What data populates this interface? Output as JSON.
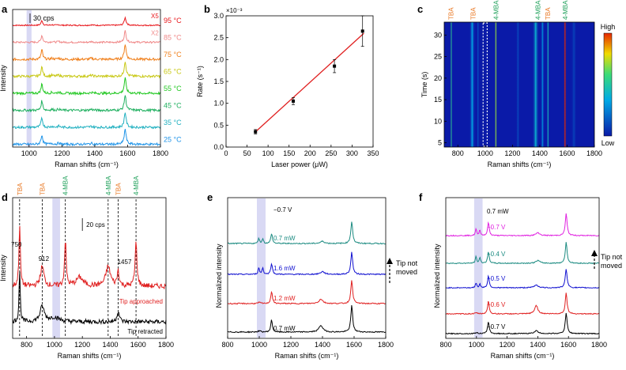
{
  "colors": {
    "black": "#000000",
    "red": "#e02020",
    "blue": "#1010d0",
    "teal": "#1a8a80",
    "magenta": "#e020e0",
    "orange": "#e87722",
    "green": "#1fa05a",
    "band": "#c9c9f0",
    "a_series": [
      "#e8161b",
      "#f08a8a",
      "#f07f1a",
      "#c8c815",
      "#22c822",
      "#20b060",
      "#20b0c0",
      "#2094e8"
    ],
    "heat_bg": "#0a1aa8"
  },
  "chart_data": [
    {
      "panel": "a",
      "type": "line",
      "xlabel": "Raman shifts (cm⁻¹)",
      "ylabel": "Intensity",
      "xlim": [
        900,
        1800
      ],
      "xticks": [
        "1000",
        "1200",
        "1400",
        "1600",
        "1800"
      ],
      "scalebar": "30 cps",
      "series": [
        {
          "name": "95 °C",
          "note": "X5"
        },
        {
          "name": "85 °C",
          "note": "X2"
        },
        {
          "name": "75 °C",
          "note": ""
        },
        {
          "name": "65 °C",
          "note": ""
        },
        {
          "name": "55 °C",
          "note": ""
        },
        {
          "name": "45 °C",
          "note": ""
        },
        {
          "name": "35 °C",
          "note": ""
        },
        {
          "name": "25 °C",
          "note": ""
        }
      ],
      "peaks": [
        1078,
        1585
      ]
    },
    {
      "panel": "b",
      "type": "scatter",
      "xlabel": "Laser power (μW)",
      "ylabel": "Rate (s⁻¹)",
      "exponent": "×10⁻³",
      "xlim": [
        0,
        350
      ],
      "ylim": [
        0,
        3.0
      ],
      "xticks": [
        "0",
        "50",
        "100",
        "150",
        "200",
        "250",
        "300",
        "350"
      ],
      "yticks": [
        "0.0",
        "0.5",
        "1.0",
        "1.5",
        "2.0",
        "2.5",
        "3.0"
      ],
      "points": [
        {
          "x": 70,
          "y": 0.35,
          "err": 0.05
        },
        {
          "x": 160,
          "y": 1.05,
          "err": 0.08
        },
        {
          "x": 258,
          "y": 1.85,
          "err": 0.15
        },
        {
          "x": 325,
          "y": 2.65,
          "err": 0.35
        }
      ],
      "fit": {
        "x": [
          68,
          328
        ],
        "y": [
          0.33,
          2.6
        ]
      }
    },
    {
      "panel": "c",
      "type": "heatmap",
      "xlabel": "Raman shifts (cm⁻¹)",
      "ylabel": "Time (s)",
      "xlim": [
        700,
        1800
      ],
      "ylim": [
        4,
        33
      ],
      "xticks": [
        "800",
        "1000",
        "1200",
        "1400",
        "1600",
        "1800"
      ],
      "yticks": [
        "5",
        "10",
        "15",
        "20",
        "25",
        "30"
      ],
      "colorbar": {
        "high": "High",
        "low": "Low"
      },
      "peak_labels": [
        {
          "text": "TBA",
          "x": 750,
          "kind": "tba"
        },
        {
          "text": "TBA",
          "x": 912,
          "kind": "tba"
        },
        {
          "text": "4-MBA",
          "x": 1078,
          "kind": "mba"
        },
        {
          "text": "4-MBA",
          "x": 1385,
          "kind": "mba"
        },
        {
          "text": "TBA",
          "x": 1457,
          "kind": "tba"
        },
        {
          "text": "4-MBA",
          "x": 1585,
          "kind": "mba"
        }
      ],
      "stripes": [
        {
          "x": 752,
          "w": 12,
          "i": 0.55
        },
        {
          "x": 905,
          "w": 30,
          "i": 0.35
        },
        {
          "x": 948,
          "w": 10,
          "i": 0.2
        },
        {
          "x": 1078,
          "w": 14,
          "i": 0.7
        },
        {
          "x": 1370,
          "w": 35,
          "i": 0.4
        },
        {
          "x": 1420,
          "w": 20,
          "i": 0.3
        },
        {
          "x": 1460,
          "w": 14,
          "i": 0.45
        },
        {
          "x": 1585,
          "w": 16,
          "i": 1.0
        },
        {
          "x": 1240,
          "w": 20,
          "i": 0.12
        },
        {
          "x": 1650,
          "w": 30,
          "i": 0.1
        }
      ]
    },
    {
      "panel": "d",
      "type": "line",
      "xlabel": "Raman shifts (cm⁻¹)",
      "ylabel": "Intensity",
      "xlim": [
        700,
        1800
      ],
      "xticks": [
        "800",
        "1000",
        "1200",
        "1400",
        "1600",
        "1800"
      ],
      "scalebar": "20 cps",
      "peak_labels": [
        {
          "text": "TBA",
          "x": 750,
          "kind": "tba"
        },
        {
          "text": "TBA",
          "x": 912,
          "kind": "tba"
        },
        {
          "text": "4-MBA",
          "x": 1078,
          "kind": "mba"
        },
        {
          "text": "4-MBA",
          "x": 1385,
          "kind": "mba"
        },
        {
          "text": "TBA",
          "x": 1457,
          "kind": "tba"
        },
        {
          "text": "4-MBA",
          "x": 1585,
          "kind": "mba"
        }
      ],
      "peak_values": [
        "750",
        "912",
        "1457"
      ],
      "series": [
        {
          "name": "Tip approached"
        },
        {
          "name": "Tip retracted"
        }
      ]
    },
    {
      "panel": "e",
      "type": "line",
      "xlabel": "Raman shifts (cm⁻¹)",
      "ylabel": "Normalized intensity",
      "xlim": [
        800,
        1800
      ],
      "xticks": [
        "800",
        "1000",
        "1200",
        "1400",
        "1600",
        "1800"
      ],
      "series": [
        {
          "name": "−0.7 V"
        },
        {
          "name": "0.7 mW"
        },
        {
          "name": "1.6 mW"
        },
        {
          "name": "1.2 mW"
        },
        {
          "name": "0.7 mW"
        }
      ],
      "annotation": [
        "Tip not",
        "moved"
      ]
    },
    {
      "panel": "f",
      "type": "line",
      "xlabel": "Raman shifts (cm⁻¹)",
      "ylabel": "Normalized intensity",
      "xlim": [
        800,
        1800
      ],
      "xticks": [
        "800",
        "1000",
        "1200",
        "1400",
        "1600",
        "1800"
      ],
      "series": [
        {
          "name": "0.7 mW"
        },
        {
          "name": "−0.7 V"
        },
        {
          "name": "−0.4 V"
        },
        {
          "name": "−0.5 V"
        },
        {
          "name": "−0.6 V"
        },
        {
          "name": "−0.7 V"
        }
      ],
      "annotation": [
        "Tip not",
        "moved"
      ]
    }
  ]
}
